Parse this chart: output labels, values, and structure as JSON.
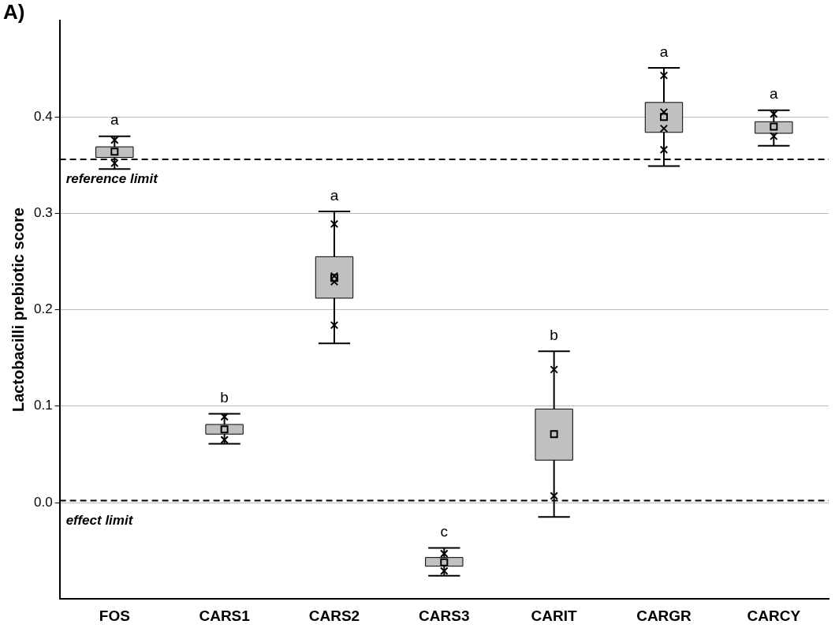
{
  "chart_data": {
    "type": "box",
    "title": "A)",
    "ylabel": "Lactobacilli prebiotic score",
    "categories": [
      "FOS",
      "CARS1",
      "CARS2",
      "CARS3",
      "CARIT",
      "CARGR",
      "CARCY"
    ],
    "color": "#c0c0c0",
    "boxes": [
      {
        "low": 0.346,
        "q1": 0.358,
        "median": 0.364,
        "q3": 0.369,
        "high": 0.38
      },
      {
        "low": 0.061,
        "q1": 0.071,
        "median": 0.076,
        "q3": 0.081,
        "high": 0.092
      },
      {
        "low": 0.165,
        "q1": 0.212,
        "median": 0.233,
        "q3": 0.255,
        "high": 0.302
      },
      {
        "low": -0.076,
        "q1": -0.066,
        "median": -0.062,
        "q3": -0.057,
        "high": -0.047
      },
      {
        "low": -0.015,
        "q1": 0.044,
        "median": 0.071,
        "q3": 0.097,
        "high": 0.157
      },
      {
        "low": 0.349,
        "q1": 0.384,
        "median": 0.4,
        "q3": 0.415,
        "high": 0.451
      },
      {
        "low": 0.37,
        "q1": 0.383,
        "median": 0.39,
        "q3": 0.395,
        "high": 0.407
      }
    ],
    "series": [
      {
        "type": "scatter",
        "color": "#000000",
        "marker": "cross",
        "x": [
          "FOS",
          "FOS",
          "CARS1",
          "CARS1",
          "CARS2",
          "CARS2",
          "CARS2",
          "CARS2",
          "CARS3",
          "CARS3",
          "CARIT",
          "CARIT",
          "CARGR",
          "CARGR",
          "CARGR",
          "CARGR",
          "CARCY",
          "CARCY"
        ],
        "values": [
          0.376,
          0.352,
          0.089,
          0.065,
          0.289,
          0.235,
          0.229,
          0.184,
          -0.053,
          -0.071,
          0.138,
          0.007,
          0.443,
          0.405,
          0.388,
          0.366,
          0.403,
          0.38
        ]
      }
    ],
    "ylim": [
      -0.1,
      0.5
    ],
    "yticks": [
      {
        "value": 0,
        "label": "0.0"
      },
      0.1,
      0.2,
      0.3,
      0.4
    ],
    "grid": "y",
    "legend": false,
    "ref_lines": [
      {
        "axis": "y",
        "value": 0.356,
        "label": "reference limit",
        "color": "#000000",
        "line_style": "dashed"
      },
      {
        "axis": "y",
        "value": 0.002,
        "label": "effect limit",
        "color": "#000000",
        "line_style": "dashed"
      }
    ],
    "annotations": [
      {
        "text": "a",
        "x": "FOS",
        "y": 0.38
      },
      {
        "text": "b",
        "x": "CARS1",
        "y": 0.092
      },
      {
        "text": "a",
        "x": "CARS2",
        "y": 0.302
      },
      {
        "text": "c",
        "x": "CARS3",
        "y": -0.047
      },
      {
        "text": "b",
        "x": "CARIT",
        "y": 0.157
      },
      {
        "text": "a",
        "x": "CARGR",
        "y": 0.451
      },
      {
        "text": "a",
        "x": "CARCY",
        "y": 0.407
      }
    ]
  }
}
